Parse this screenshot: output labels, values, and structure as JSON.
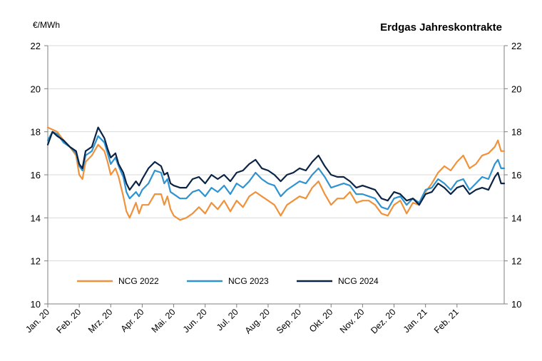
{
  "chart_data": {
    "type": "line",
    "title": "Erdgas Jahreskontrakte",
    "ylabel": "€/MWh",
    "xlabel": "",
    "ylim": [
      10,
      22
    ],
    "yticks": [
      10,
      12,
      14,
      16,
      18,
      20,
      22
    ],
    "secondary_axis": true,
    "grid": "horizontal",
    "legend_position": "bottom-left",
    "categories": [
      "Jan. 20",
      "Feb. 20",
      "Mrz. 20",
      "Apr. 20",
      "Mai. 20",
      "Jun. 20",
      "Jul. 20",
      "Aug. 20",
      "Sep. 20",
      "Okt. 20",
      "Nov. 20",
      "Dez. 20",
      "Jan. 21",
      "Feb. 21"
    ],
    "x_end": 14.5,
    "series": [
      {
        "name": "NCG 2022",
        "color": "#F0923B",
        "points": [
          [
            0,
            18.2
          ],
          [
            0.15,
            18.1
          ],
          [
            0.3,
            18.0
          ],
          [
            0.5,
            17.6
          ],
          [
            0.7,
            17.3
          ],
          [
            0.9,
            16.9
          ],
          [
            1.0,
            16.0
          ],
          [
            1.1,
            15.8
          ],
          [
            1.2,
            16.6
          ],
          [
            1.4,
            16.9
          ],
          [
            1.6,
            17.4
          ],
          [
            1.8,
            17.1
          ],
          [
            1.9,
            16.6
          ],
          [
            2.0,
            16.0
          ],
          [
            2.15,
            16.3
          ],
          [
            2.25,
            15.9
          ],
          [
            2.4,
            15.0
          ],
          [
            2.5,
            14.3
          ],
          [
            2.6,
            14.0
          ],
          [
            2.8,
            14.7
          ],
          [
            2.9,
            14.2
          ],
          [
            3.0,
            14.6
          ],
          [
            3.2,
            14.6
          ],
          [
            3.4,
            15.1
          ],
          [
            3.6,
            15.1
          ],
          [
            3.7,
            14.6
          ],
          [
            3.8,
            15.0
          ],
          [
            3.9,
            14.4
          ],
          [
            4.0,
            14.1
          ],
          [
            4.2,
            13.9
          ],
          [
            4.4,
            14.0
          ],
          [
            4.6,
            14.2
          ],
          [
            4.8,
            14.5
          ],
          [
            5.0,
            14.2
          ],
          [
            5.2,
            14.7
          ],
          [
            5.4,
            14.4
          ],
          [
            5.6,
            14.8
          ],
          [
            5.8,
            14.3
          ],
          [
            6.0,
            14.8
          ],
          [
            6.2,
            14.5
          ],
          [
            6.4,
            15.0
          ],
          [
            6.6,
            15.2
          ],
          [
            6.8,
            15.0
          ],
          [
            7.0,
            14.8
          ],
          [
            7.2,
            14.6
          ],
          [
            7.4,
            14.1
          ],
          [
            7.6,
            14.6
          ],
          [
            7.8,
            14.8
          ],
          [
            8.0,
            15.0
          ],
          [
            8.2,
            14.9
          ],
          [
            8.4,
            15.4
          ],
          [
            8.6,
            15.7
          ],
          [
            8.8,
            15.1
          ],
          [
            9.0,
            14.6
          ],
          [
            9.2,
            14.9
          ],
          [
            9.4,
            14.9
          ],
          [
            9.6,
            15.2
          ],
          [
            9.8,
            14.7
          ],
          [
            10.0,
            14.8
          ],
          [
            10.2,
            14.8
          ],
          [
            10.4,
            14.6
          ],
          [
            10.6,
            14.2
          ],
          [
            10.8,
            14.1
          ],
          [
            11.0,
            14.6
          ],
          [
            11.2,
            14.8
          ],
          [
            11.4,
            14.2
          ],
          [
            11.6,
            14.7
          ],
          [
            11.8,
            14.6
          ],
          [
            12.0,
            15.2
          ],
          [
            12.2,
            15.6
          ],
          [
            12.4,
            16.1
          ],
          [
            12.6,
            16.4
          ],
          [
            12.8,
            16.2
          ],
          [
            13.0,
            16.6
          ],
          [
            13.2,
            16.9
          ],
          [
            13.4,
            16.3
          ],
          [
            13.6,
            16.5
          ],
          [
            13.8,
            16.9
          ],
          [
            14.0,
            17.0
          ],
          [
            14.2,
            17.3
          ],
          [
            14.3,
            17.6
          ],
          [
            14.4,
            17.1
          ],
          [
            14.5,
            17.1
          ]
        ]
      },
      {
        "name": "NCG 2023",
        "color": "#2E93D1",
        "points": [
          [
            0,
            17.6
          ],
          [
            0.15,
            18.0
          ],
          [
            0.3,
            17.9
          ],
          [
            0.5,
            17.5
          ],
          [
            0.7,
            17.3
          ],
          [
            0.9,
            17.0
          ],
          [
            1.0,
            16.4
          ],
          [
            1.1,
            16.2
          ],
          [
            1.2,
            16.9
          ],
          [
            1.4,
            17.1
          ],
          [
            1.6,
            17.8
          ],
          [
            1.8,
            17.5
          ],
          [
            1.9,
            17.0
          ],
          [
            2.0,
            16.5
          ],
          [
            2.15,
            16.8
          ],
          [
            2.25,
            16.4
          ],
          [
            2.4,
            15.9
          ],
          [
            2.5,
            15.2
          ],
          [
            2.6,
            14.9
          ],
          [
            2.8,
            15.2
          ],
          [
            2.9,
            15.0
          ],
          [
            3.0,
            15.3
          ],
          [
            3.2,
            15.6
          ],
          [
            3.4,
            16.2
          ],
          [
            3.6,
            16.1
          ],
          [
            3.7,
            15.6
          ],
          [
            3.8,
            15.8
          ],
          [
            3.9,
            15.2
          ],
          [
            4.0,
            15.1
          ],
          [
            4.2,
            14.9
          ],
          [
            4.4,
            14.9
          ],
          [
            4.6,
            15.2
          ],
          [
            4.8,
            15.3
          ],
          [
            5.0,
            15.0
          ],
          [
            5.2,
            15.4
          ],
          [
            5.4,
            15.2
          ],
          [
            5.6,
            15.5
          ],
          [
            5.8,
            15.1
          ],
          [
            6.0,
            15.6
          ],
          [
            6.2,
            15.4
          ],
          [
            6.4,
            15.7
          ],
          [
            6.6,
            16.1
          ],
          [
            6.8,
            15.8
          ],
          [
            7.0,
            15.6
          ],
          [
            7.2,
            15.5
          ],
          [
            7.4,
            15.0
          ],
          [
            7.6,
            15.3
          ],
          [
            7.8,
            15.5
          ],
          [
            8.0,
            15.7
          ],
          [
            8.2,
            15.6
          ],
          [
            8.4,
            16.0
          ],
          [
            8.6,
            16.3
          ],
          [
            8.8,
            15.9
          ],
          [
            9.0,
            15.4
          ],
          [
            9.2,
            15.5
          ],
          [
            9.4,
            15.6
          ],
          [
            9.6,
            15.5
          ],
          [
            9.8,
            15.1
          ],
          [
            10.0,
            15.1
          ],
          [
            10.2,
            15.0
          ],
          [
            10.4,
            14.9
          ],
          [
            10.6,
            14.5
          ],
          [
            10.8,
            14.4
          ],
          [
            11.0,
            14.9
          ],
          [
            11.2,
            15.0
          ],
          [
            11.4,
            14.6
          ],
          [
            11.6,
            14.9
          ],
          [
            11.8,
            14.7
          ],
          [
            12.0,
            15.3
          ],
          [
            12.2,
            15.4
          ],
          [
            12.4,
            15.8
          ],
          [
            12.6,
            15.6
          ],
          [
            12.8,
            15.3
          ],
          [
            13.0,
            15.7
          ],
          [
            13.2,
            15.8
          ],
          [
            13.4,
            15.3
          ],
          [
            13.6,
            15.6
          ],
          [
            13.8,
            15.9
          ],
          [
            14.0,
            15.8
          ],
          [
            14.2,
            16.5
          ],
          [
            14.3,
            16.7
          ],
          [
            14.4,
            16.3
          ],
          [
            14.5,
            16.3
          ]
        ]
      },
      {
        "name": "NCG 2024",
        "color": "#0B2344",
        "points": [
          [
            0,
            17.4
          ],
          [
            0.15,
            18.0
          ],
          [
            0.3,
            17.8
          ],
          [
            0.5,
            17.6
          ],
          [
            0.7,
            17.3
          ],
          [
            0.9,
            17.1
          ],
          [
            1.0,
            16.5
          ],
          [
            1.1,
            16.3
          ],
          [
            1.2,
            17.1
          ],
          [
            1.4,
            17.3
          ],
          [
            1.6,
            18.2
          ],
          [
            1.8,
            17.7
          ],
          [
            1.9,
            17.2
          ],
          [
            2.0,
            16.8
          ],
          [
            2.15,
            17.0
          ],
          [
            2.25,
            16.5
          ],
          [
            2.4,
            16.1
          ],
          [
            2.5,
            15.6
          ],
          [
            2.6,
            15.3
          ],
          [
            2.8,
            15.7
          ],
          [
            2.9,
            15.5
          ],
          [
            3.0,
            15.8
          ],
          [
            3.2,
            16.3
          ],
          [
            3.4,
            16.6
          ],
          [
            3.6,
            16.4
          ],
          [
            3.7,
            16.0
          ],
          [
            3.8,
            16.1
          ],
          [
            3.9,
            15.6
          ],
          [
            4.0,
            15.5
          ],
          [
            4.2,
            15.4
          ],
          [
            4.4,
            15.4
          ],
          [
            4.6,
            15.8
          ],
          [
            4.8,
            15.9
          ],
          [
            5.0,
            15.6
          ],
          [
            5.2,
            16.0
          ],
          [
            5.4,
            15.8
          ],
          [
            5.6,
            16.0
          ],
          [
            5.8,
            15.7
          ],
          [
            6.0,
            16.1
          ],
          [
            6.2,
            16.2
          ],
          [
            6.4,
            16.5
          ],
          [
            6.6,
            16.7
          ],
          [
            6.8,
            16.3
          ],
          [
            7.0,
            16.2
          ],
          [
            7.2,
            16.0
          ],
          [
            7.4,
            15.7
          ],
          [
            7.6,
            16.0
          ],
          [
            7.8,
            16.1
          ],
          [
            8.0,
            16.3
          ],
          [
            8.2,
            16.2
          ],
          [
            8.4,
            16.6
          ],
          [
            8.6,
            16.9
          ],
          [
            8.8,
            16.4
          ],
          [
            9.0,
            16.0
          ],
          [
            9.2,
            15.9
          ],
          [
            9.4,
            15.9
          ],
          [
            9.6,
            15.7
          ],
          [
            9.8,
            15.4
          ],
          [
            10.0,
            15.5
          ],
          [
            10.2,
            15.4
          ],
          [
            10.4,
            15.3
          ],
          [
            10.6,
            14.9
          ],
          [
            10.8,
            14.8
          ],
          [
            11.0,
            15.2
          ],
          [
            11.2,
            15.1
          ],
          [
            11.4,
            14.8
          ],
          [
            11.6,
            14.9
          ],
          [
            11.8,
            14.6
          ],
          [
            12.0,
            15.1
          ],
          [
            12.2,
            15.2
          ],
          [
            12.4,
            15.6
          ],
          [
            12.6,
            15.4
          ],
          [
            12.8,
            15.1
          ],
          [
            13.0,
            15.4
          ],
          [
            13.2,
            15.5
          ],
          [
            13.4,
            15.1
          ],
          [
            13.6,
            15.3
          ],
          [
            13.8,
            15.4
          ],
          [
            14.0,
            15.3
          ],
          [
            14.2,
            15.9
          ],
          [
            14.3,
            16.1
          ],
          [
            14.4,
            15.6
          ],
          [
            14.5,
            15.6
          ]
        ]
      }
    ]
  }
}
